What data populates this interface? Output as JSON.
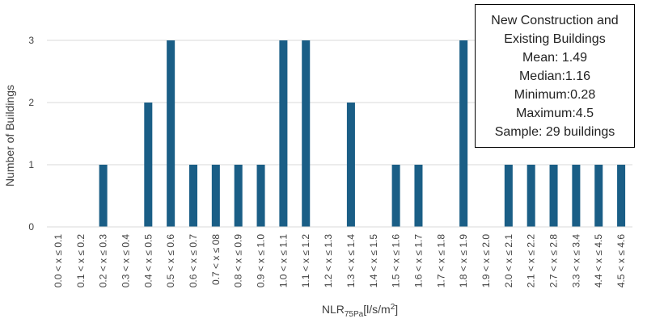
{
  "chart_data": {
    "type": "bar",
    "categories": [
      "0.0 < x ≤ 0.1",
      "0.1 < x ≤ 0.2",
      "0.2 < x ≤ 0.3",
      "0.3 < x ≤ 0.4",
      "0.4 < x ≤ 0.5",
      "0.5 < x ≤ 0.6",
      "0.6 < x ≤ 0.7",
      "0.7 < x ≤ 08",
      "0.8 < x ≤ 0.9",
      "0.9 < x ≤ 1.0",
      "1.0 < x ≤ 1.1",
      "1.1 < x ≤ 1.2",
      "1.2 < x ≤ 1.3",
      "1.3 < x ≤ 1.4",
      "1.4 < x ≤ 1.5",
      "1.5 < x ≤ 1.6",
      "1.6 < x ≤ 1.7",
      "1.7 < x ≤ 1.8",
      "1.8 < x ≤ 1.9",
      "1.9 < x ≤ 2.0",
      "2.0 < x ≤ 2.1",
      "2.1 < x ≤ 2.2",
      "2.7 < x ≤ 2.8",
      "3.3 < x ≤ 3.4",
      "4.4 < x ≤ 4.5",
      "4.5 < x ≤ 4.6"
    ],
    "values": [
      0,
      0,
      1,
      0,
      2,
      3,
      1,
      1,
      1,
      1,
      3,
      3,
      0,
      2,
      0,
      1,
      1,
      0,
      3,
      0,
      1,
      1,
      1,
      1,
      1,
      1
    ],
    "xlabel_main": "NLR",
    "xlabel_sub": "75Pa",
    "xlabel_unit": "[l/s/m",
    "xlabel_sup": "2",
    "xlabel_close": "]",
    "ylabel": "Number of Buildings",
    "ylim": [
      0,
      3
    ],
    "yticks": [
      "0",
      "1",
      "2",
      "3"
    ],
    "grid": true,
    "bar_color": "#1a5e86"
  },
  "stats_box": {
    "lines": [
      "New Construction and",
      "Existing Buildings",
      "Mean: 1.49",
      "Median:1.16",
      "Minimum:0.28",
      "Maximum:4.5",
      "Sample: 29 buildings"
    ]
  }
}
